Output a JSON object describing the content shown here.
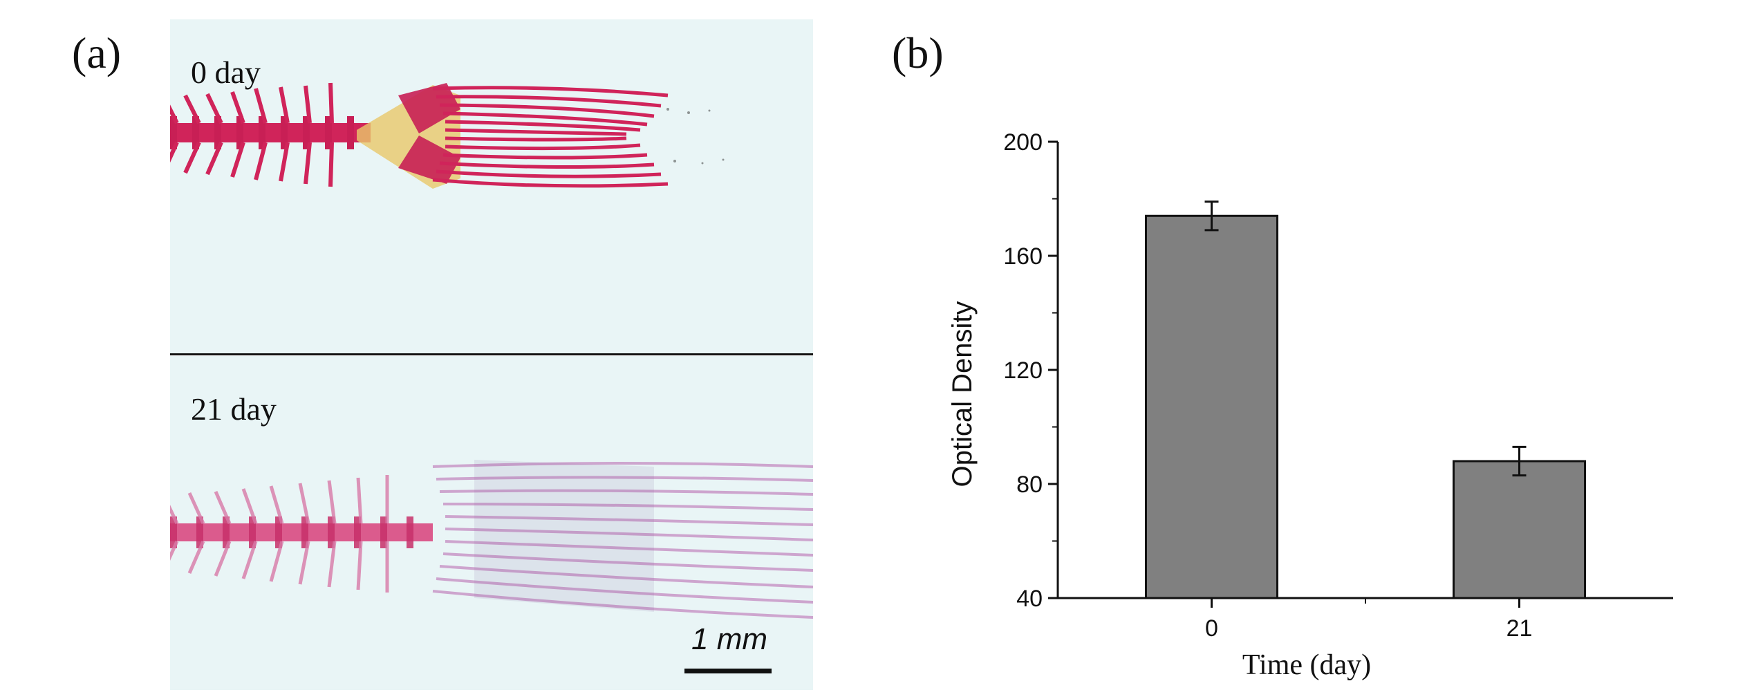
{
  "panel_a": {
    "label": "(a)",
    "top_caption": "0 day",
    "bottom_caption": "21 day",
    "scale_bar": "1 mm"
  },
  "panel_b": {
    "label": "(b)"
  },
  "chart_data": {
    "type": "bar",
    "categories": [
      "0",
      "21"
    ],
    "values": [
      174,
      88
    ],
    "errors": [
      5,
      5
    ],
    "xlabel": "Time (day)",
    "ylabel": "Optical Density",
    "ylim": [
      40,
      200
    ],
    "yticks": [
      40,
      80,
      120,
      160,
      200
    ],
    "bar_color": "#808080",
    "grid": false
  },
  "colors": {
    "stain_red": "#d0245a",
    "faded_stain": "#d98ab8",
    "background_tint": "#e9f5f6"
  }
}
